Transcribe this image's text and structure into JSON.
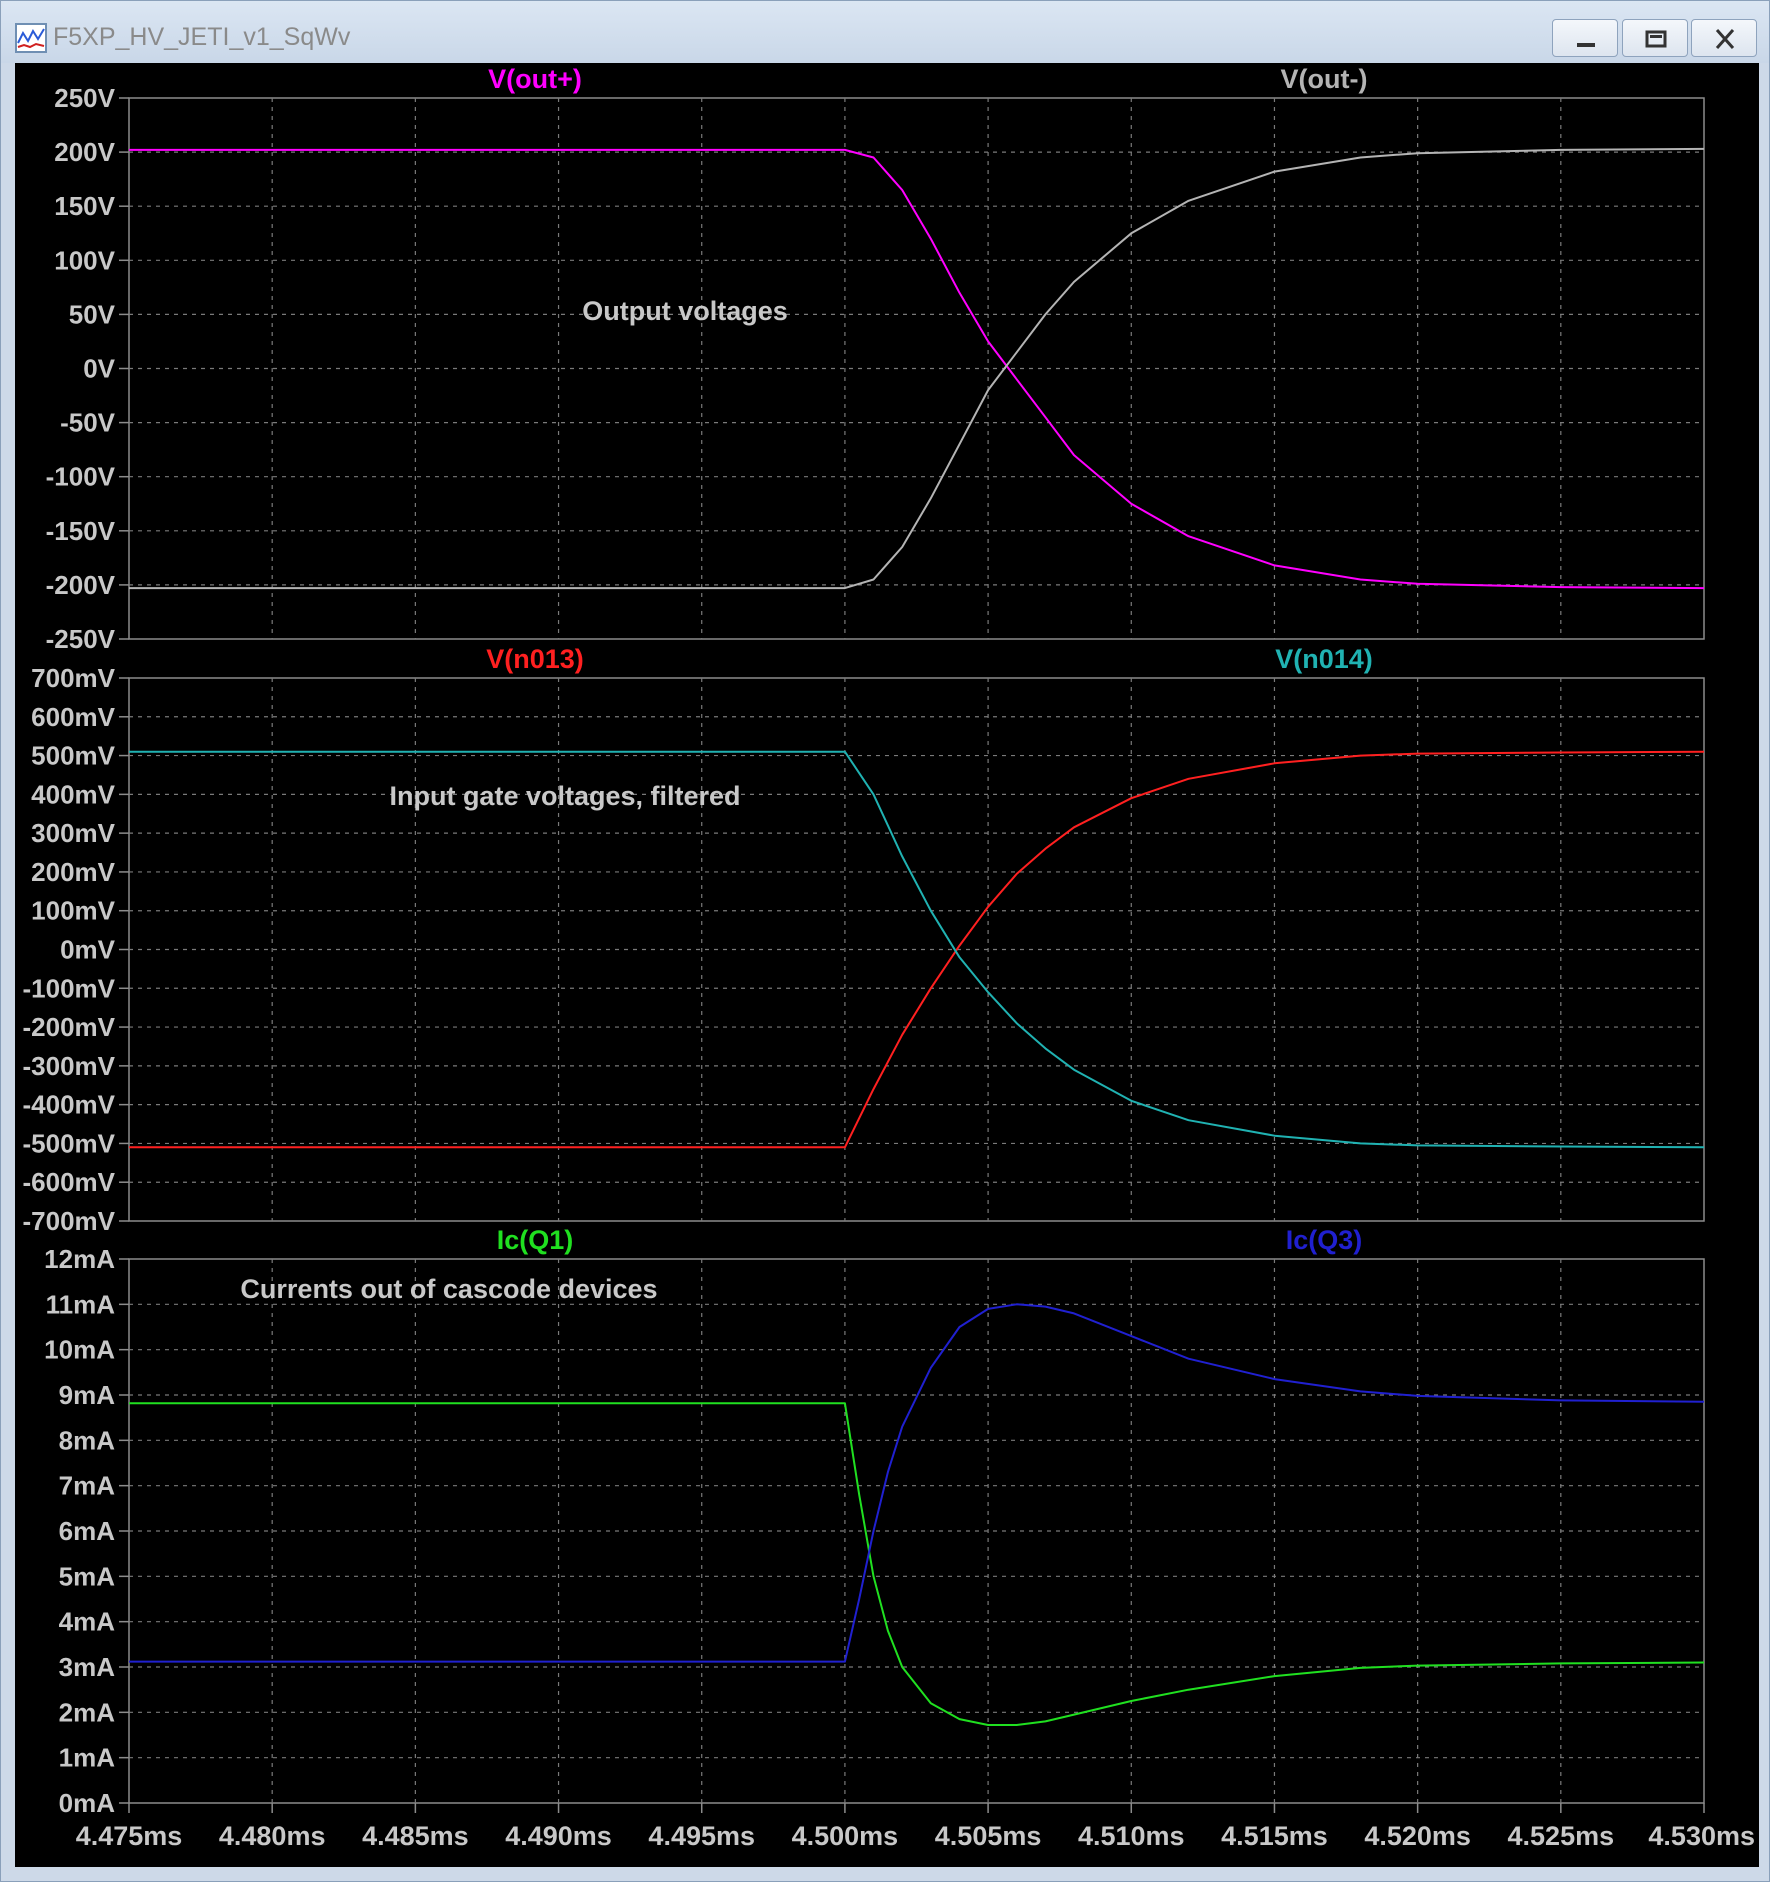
{
  "window": {
    "title": "F5XP_HV_JETI_v1_SqWv",
    "icon": "waveform-icon",
    "buttons": [
      "minimize-icon",
      "restore-icon",
      "close-icon"
    ]
  },
  "chart_data": [
    {
      "type": "line",
      "annotation": "Output voltages",
      "ylim": [
        -250,
        250
      ],
      "yticks": [
        "250V",
        "200V",
        "150V",
        "100V",
        "50V",
        "0V",
        "-50V",
        "-100V",
        "-150V",
        "-200V",
        "-250V"
      ],
      "series": [
        {
          "name": "V(out+)",
          "color": "#ff00ff",
          "x": [
            4.475,
            4.5,
            4.501,
            4.502,
            4.503,
            4.504,
            4.505,
            4.506,
            4.507,
            4.508,
            4.51,
            4.512,
            4.515,
            4.518,
            4.52,
            4.525,
            4.53
          ],
          "y": [
            202,
            202,
            195,
            165,
            120,
            70,
            25,
            -10,
            -45,
            -80,
            -125,
            -155,
            -182,
            -195,
            -199,
            -202,
            -203
          ]
        },
        {
          "name": "V(out-)",
          "color": "#b4b4b4",
          "x": [
            4.475,
            4.5,
            4.501,
            4.502,
            4.503,
            4.504,
            4.505,
            4.506,
            4.507,
            4.508,
            4.51,
            4.512,
            4.515,
            4.518,
            4.52,
            4.525,
            4.53
          ],
          "y": [
            -203,
            -203,
            -195,
            -165,
            -120,
            -70,
            -20,
            15,
            50,
            80,
            125,
            155,
            182,
            195,
            199,
            202,
            203
          ]
        }
      ]
    },
    {
      "type": "line",
      "annotation": "Input gate voltages, filtered",
      "ylim": [
        -700,
        700
      ],
      "yticks": [
        "700mV",
        "600mV",
        "500mV",
        "400mV",
        "300mV",
        "200mV",
        "100mV",
        "0mV",
        "-100mV",
        "-200mV",
        "-300mV",
        "-400mV",
        "-500mV",
        "-600mV",
        "-700mV"
      ],
      "series": [
        {
          "name": "V(n013)",
          "color": "#ff2020",
          "x": [
            4.475,
            4.5,
            4.501,
            4.502,
            4.503,
            4.504,
            4.505,
            4.506,
            4.507,
            4.508,
            4.51,
            4.512,
            4.515,
            4.518,
            4.52,
            4.525,
            4.53
          ],
          "y": [
            -510,
            -510,
            -360,
            -220,
            -100,
            10,
            110,
            195,
            260,
            315,
            390,
            440,
            480,
            500,
            505,
            508,
            510
          ]
        },
        {
          "name": "V(n014)",
          "color": "#20b2b2",
          "x": [
            4.475,
            4.5,
            4.501,
            4.502,
            4.503,
            4.504,
            4.505,
            4.506,
            4.507,
            4.508,
            4.51,
            4.512,
            4.515,
            4.518,
            4.52,
            4.525,
            4.53
          ],
          "y": [
            510,
            510,
            400,
            240,
            100,
            -20,
            -110,
            -190,
            -255,
            -310,
            -390,
            -440,
            -480,
            -500,
            -505,
            -508,
            -510
          ]
        }
      ]
    },
    {
      "type": "line",
      "annotation": "Currents out of cascode devices",
      "ylim": [
        0,
        12
      ],
      "yticks": [
        "12mA",
        "11mA",
        "10mA",
        "9mA",
        "8mA",
        "7mA",
        "6mA",
        "5mA",
        "4mA",
        "3mA",
        "2mA",
        "1mA",
        "0mA"
      ],
      "xlim": [
        4.475,
        4.53
      ],
      "xticks": [
        "4.475ms",
        "4.480ms",
        "4.485ms",
        "4.490ms",
        "4.495ms",
        "4.500ms",
        "4.505ms",
        "4.510ms",
        "4.515ms",
        "4.520ms",
        "4.525ms",
        "4.530ms"
      ],
      "series": [
        {
          "name": "Ic(Q1)",
          "color": "#20e020",
          "x": [
            4.475,
            4.5,
            4.5005,
            4.501,
            4.5015,
            4.502,
            4.503,
            4.504,
            4.505,
            4.506,
            4.507,
            4.508,
            4.51,
            4.512,
            4.515,
            4.518,
            4.52,
            4.525,
            4.53
          ],
          "y": [
            8.82,
            8.82,
            6.8,
            5.0,
            3.8,
            3.0,
            2.2,
            1.85,
            1.72,
            1.72,
            1.8,
            1.95,
            2.25,
            2.5,
            2.8,
            2.98,
            3.03,
            3.08,
            3.1
          ]
        },
        {
          "name": "Ic(Q3)",
          "color": "#2020d0",
          "x": [
            4.475,
            4.5,
            4.5005,
            4.501,
            4.5015,
            4.502,
            4.503,
            4.504,
            4.505,
            4.506,
            4.507,
            4.508,
            4.51,
            4.512,
            4.515,
            4.518,
            4.52,
            4.525,
            4.53
          ],
          "y": [
            3.12,
            3.12,
            4.5,
            6.0,
            7.3,
            8.3,
            9.6,
            10.5,
            10.9,
            11.0,
            10.95,
            10.8,
            10.3,
            9.8,
            9.35,
            9.08,
            8.98,
            8.88,
            8.85
          ]
        }
      ]
    }
  ]
}
